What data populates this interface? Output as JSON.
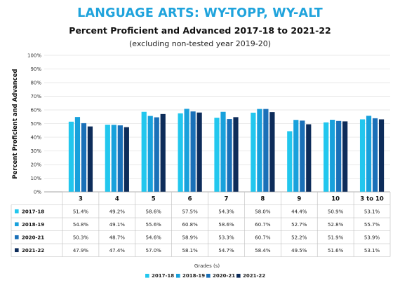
{
  "header": {
    "title": "LANGUAGE ARTS: WY-TOPP, WY-ALT",
    "subtitle": "Percent Proficient and Advanced 2017-18 to 2021-22",
    "note": "(excluding non-tested year 2019-20)"
  },
  "chart_data": {
    "type": "bar",
    "title": "LANGUAGE ARTS: WY-TOPP, WY-ALT",
    "subtitle": "Percent Proficient and Advanced 2017-18 to 2021-22",
    "ylabel": "Percent Proficient and Advanced",
    "xlabel": "Grades (s)",
    "ylim": [
      0,
      100
    ],
    "yticks": [
      "0%",
      "10%",
      "20%",
      "30%",
      "40%",
      "50%",
      "60%",
      "70%",
      "80%",
      "90%",
      "100%"
    ],
    "ytick_values": [
      0,
      10,
      20,
      30,
      40,
      50,
      60,
      70,
      80,
      90,
      100
    ],
    "grid": true,
    "legend_position": "bottom",
    "categories": [
      "3",
      "4",
      "5",
      "6",
      "7",
      "8",
      "9",
      "10",
      "3 to 10"
    ],
    "series": [
      {
        "name": "2017-18",
        "color": "#22c7ee",
        "values": [
          51.4,
          49.2,
          58.6,
          57.5,
          54.3,
          58.0,
          44.4,
          50.9,
          53.1
        ],
        "labels": [
          "51.4%",
          "49.2%",
          "58.6%",
          "57.5%",
          "54.3%",
          "58.0%",
          "44.4%",
          "50.9%",
          "53.1%"
        ]
      },
      {
        "name": "2018-19",
        "color": "#18a1dc",
        "values": [
          54.8,
          49.1,
          55.6,
          60.8,
          58.6,
          60.7,
          52.7,
          52.8,
          55.7
        ],
        "labels": [
          "54.8%",
          "49.1%",
          "55.6%",
          "60.8%",
          "58.6%",
          "60.7%",
          "52.7%",
          "52.8%",
          "55.7%"
        ]
      },
      {
        "name": "2020-21",
        "color": "#1a70b8",
        "values": [
          50.3,
          48.7,
          54.6,
          58.9,
          53.3,
          60.7,
          52.2,
          51.9,
          53.9
        ],
        "labels": [
          "50.3%",
          "48.7%",
          "54.6%",
          "58.9%",
          "53.3%",
          "60.7%",
          "52.2%",
          "51.9%",
          "53.9%"
        ]
      },
      {
        "name": "2021-22",
        "color": "#0d2c5a",
        "values": [
          47.9,
          47.4,
          57.0,
          58.1,
          54.7,
          58.4,
          49.5,
          51.6,
          53.1
        ],
        "labels": [
          "47.9%",
          "47.4%",
          "57.0%",
          "58.1%",
          "54.7%",
          "58.4%",
          "49.5%",
          "51.6%",
          "53.1%"
        ]
      }
    ]
  }
}
